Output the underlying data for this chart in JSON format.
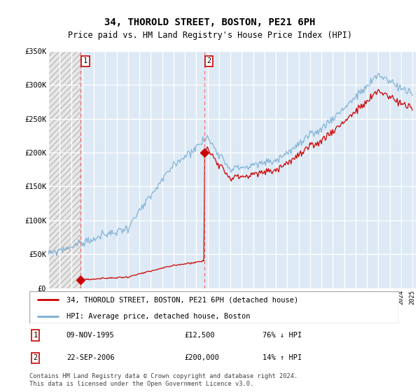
{
  "title": "34, THOROLD STREET, BOSTON, PE21 6PH",
  "subtitle": "Price paid vs. HM Land Registry's House Price Index (HPI)",
  "legend_line1": "34, THOROLD STREET, BOSTON, PE21 6PH (detached house)",
  "legend_line2": "HPI: Average price, detached house, Boston",
  "transaction1_date": "09-NOV-1995",
  "transaction1_price": 12500,
  "transaction1_label": "76% ↓ HPI",
  "transaction2_date": "22-SEP-2006",
  "transaction2_price": 200000,
  "transaction2_label": "14% ↑ HPI",
  "footer": "Contains HM Land Registry data © Crown copyright and database right 2024.\nThis data is licensed under the Open Government Licence v3.0.",
  "hpi_color": "#7aadd4",
  "price_color": "#cc0000",
  "vline_color": "#ee6666",
  "marker_color": "#cc0000",
  "ylim": [
    0,
    350000
  ],
  "yticks": [
    0,
    50000,
    100000,
    150000,
    200000,
    250000,
    300000,
    350000
  ],
  "ytick_labels": [
    "£0",
    "£50K",
    "£100K",
    "£150K",
    "£200K",
    "£250K",
    "£300K",
    "£350K"
  ],
  "year_start": 1993,
  "year_end": 2025,
  "transaction1_year": 1995.86,
  "transaction2_year": 2006.72
}
